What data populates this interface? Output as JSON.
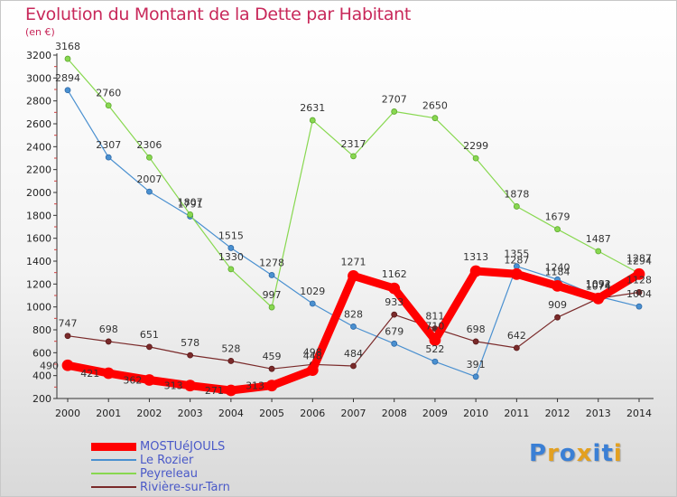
{
  "header": {
    "title": "Evolution du Montant de la Dette par Habitant",
    "unit": "(en €)"
  },
  "chart_data": {
    "type": "line",
    "title": "Evolution du Montant de la Dette par Habitant",
    "ylabel": "(en €)",
    "xlabel": "",
    "x": [
      2000,
      2001,
      2002,
      2003,
      2004,
      2005,
      2006,
      2007,
      2008,
      2009,
      2010,
      2011,
      2012,
      2013,
      2014
    ],
    "ylim": [
      200,
      3200
    ],
    "yticks": [
      200,
      400,
      600,
      800,
      1000,
      1200,
      1400,
      1600,
      1800,
      2000,
      2200,
      2400,
      2600,
      2800,
      3000,
      3200
    ],
    "grid": false,
    "legend_position": "bottom-left",
    "series": [
      {
        "name": "MOSTUéJOULS",
        "color": "#ff0000",
        "values": [
          490,
          421,
          362,
          313,
          271,
          313,
          448,
          1271,
          1162,
          710,
          1313,
          1287,
          1184,
          1074,
          1287
        ]
      },
      {
        "name": "Le Rozier",
        "color": "#4a90d0",
        "values": [
          2894,
          2307,
          2007,
          1791,
          1515,
          1278,
          1029,
          828,
          679,
          522,
          391,
          1355,
          1240,
          1092,
          1004
        ]
      },
      {
        "name": "Peyreleau",
        "color": "#88d850",
        "values": [
          3168,
          2760,
          2306,
          1807,
          1330,
          997,
          2631,
          2317,
          2707,
          2650,
          2299,
          1878,
          1679,
          1487,
          1294
        ]
      },
      {
        "name": "Rivière-sur-Tarn",
        "color": "#7a2a2a",
        "values": [
          747,
          698,
          651,
          578,
          528,
          459,
          498,
          484,
          933,
          811,
          698,
          642,
          909,
          1074,
          1128
        ]
      }
    ],
    "y_tick_labels": [
      "200",
      "400",
      "600",
      "800",
      "1000",
      "1200",
      "1400",
      "1600",
      "1800",
      "2000",
      "2200",
      "2400",
      "2600",
      "2800",
      "3000",
      "3200"
    ],
    "x_tick_labels": [
      "2000",
      "2001",
      "2002",
      "2003",
      "2004",
      "2005",
      "2006",
      "2007",
      "2008",
      "2009",
      "2010",
      "2011",
      "2012",
      "2013",
      "2014"
    ]
  },
  "logo": {
    "text": "Proxiti",
    "colors": [
      "#3a7fd5",
      "#e3a020",
      "#3a7fd5",
      "#e3a020",
      "#3a7fd5",
      "#3a7fd5",
      "#e3a020"
    ]
  }
}
